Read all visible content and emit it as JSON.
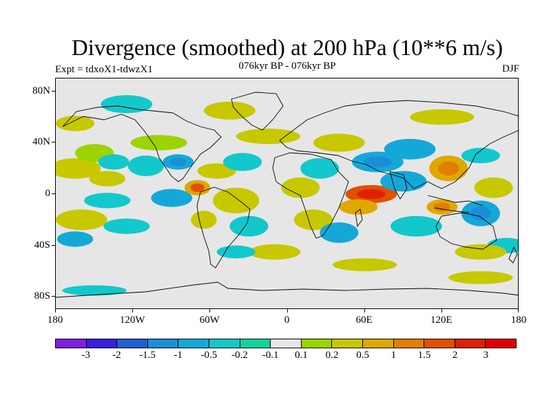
{
  "title": "Divergence (smoothed) at 200 hPa (10**6 m/s)",
  "subtitle": "076kyr BP - 076kyr BP",
  "expt": "Expt = tdxoX1-tdwzX1",
  "season": "DJF",
  "lat_labels": [
    "80N",
    "40N",
    "0",
    "40S",
    "80S"
  ],
  "lon_labels": [
    "180",
    "120W",
    "60W",
    "0",
    "60E",
    "120E",
    "180"
  ],
  "colorbar": {
    "labels": [
      "-3",
      "-2",
      "-1.5",
      "-1",
      "-0.5",
      "-0.2",
      "-0.1",
      "0.1",
      "0.2",
      "0.5",
      "1",
      "1.5",
      "2",
      "3"
    ],
    "colors": [
      "#7f1fdf",
      "#3a1fe0",
      "#1f5fd0",
      "#1a8fd8",
      "#14a8d8",
      "#12c8cc",
      "#10d49a",
      "#e6e6e6",
      "#9bd400",
      "#c8c800",
      "#dfa800",
      "#e07f00",
      "#e05000",
      "#df2000",
      "#e00000"
    ]
  },
  "chart_data": {
    "type": "filled_contour_map",
    "variable": "Divergence (smoothed) at 200 hPa",
    "units": "10**6 m/s",
    "levels": [
      -3,
      -2,
      -1.5,
      -1,
      -0.5,
      -0.2,
      -0.1,
      0.1,
      0.2,
      0.5,
      1,
      1.5,
      2,
      3
    ],
    "lon_range": [
      -180,
      180
    ],
    "lat_range": [
      -90,
      90
    ],
    "blobs": [
      {
        "lon": -165,
        "lat": 20,
        "rx": 20,
        "ry": 8,
        "value": 0.3
      },
      {
        "lon": -150,
        "lat": 32,
        "rx": 15,
        "ry": 7,
        "value": 0.2
      },
      {
        "lon": -140,
        "lat": 12,
        "rx": 14,
        "ry": 6,
        "value": 0.3
      },
      {
        "lon": -110,
        "lat": 22,
        "rx": 14,
        "ry": 8,
        "value": -0.4
      },
      {
        "lon": -135,
        "lat": 25,
        "rx": 12,
        "ry": 6,
        "value": -0.3
      },
      {
        "lon": -160,
        "lat": -20,
        "rx": 20,
        "ry": 8,
        "value": 0.4
      },
      {
        "lon": -165,
        "lat": -35,
        "rx": 14,
        "ry": 6,
        "value": -0.6
      },
      {
        "lon": -125,
        "lat": -25,
        "rx": 18,
        "ry": 6,
        "value": -0.4
      },
      {
        "lon": -140,
        "lat": -5,
        "rx": 18,
        "ry": 6,
        "value": -0.3
      },
      {
        "lon": -90,
        "lat": -3,
        "rx": 16,
        "ry": 7,
        "value": -0.5
      },
      {
        "lon": -70,
        "lat": 5,
        "rx": 10,
        "ry": 6,
        "value": 1.0
      },
      {
        "lon": -85,
        "lat": 25,
        "rx": 12,
        "ry": 6,
        "value": -0.8
      },
      {
        "lon": -100,
        "lat": 40,
        "rx": 22,
        "ry": 6,
        "value": 0.2
      },
      {
        "lon": -55,
        "lat": 18,
        "rx": 15,
        "ry": 6,
        "value": 0.4
      },
      {
        "lon": -35,
        "lat": 25,
        "rx": 15,
        "ry": 7,
        "value": -0.3
      },
      {
        "lon": -40,
        "lat": -5,
        "rx": 18,
        "ry": 10,
        "value": 0.4
      },
      {
        "lon": -65,
        "lat": -20,
        "rx": 10,
        "ry": 7,
        "value": 0.3
      },
      {
        "lon": -30,
        "lat": -25,
        "rx": 15,
        "ry": 8,
        "value": -0.3
      },
      {
        "lon": -10,
        "lat": -45,
        "rx": 20,
        "ry": 6,
        "value": 0.3
      },
      {
        "lon": -40,
        "lat": -45,
        "rx": 15,
        "ry": 5,
        "value": -0.3
      },
      {
        "lon": -15,
        "lat": 45,
        "rx": 25,
        "ry": 6,
        "value": 0.3
      },
      {
        "lon": -45,
        "lat": 65,
        "rx": 20,
        "ry": 7,
        "value": 0.3
      },
      {
        "lon": -125,
        "lat": 70,
        "rx": 20,
        "ry": 7,
        "value": -0.3
      },
      {
        "lon": 10,
        "lat": 5,
        "rx": 15,
        "ry": 8,
        "value": 0.3
      },
      {
        "lon": 25,
        "lat": 20,
        "rx": 15,
        "ry": 8,
        "value": -0.3
      },
      {
        "lon": 40,
        "lat": 40,
        "rx": 20,
        "ry": 7,
        "value": 0.3
      },
      {
        "lon": 20,
        "lat": -20,
        "rx": 15,
        "ry": 8,
        "value": 0.3
      },
      {
        "lon": 40,
        "lat": -30,
        "rx": 15,
        "ry": 8,
        "value": -0.5
      },
      {
        "lon": 65,
        "lat": 0,
        "rx": 20,
        "ry": 7,
        "value": 1.8
      },
      {
        "lon": 55,
        "lat": -10,
        "rx": 15,
        "ry": 6,
        "value": 0.6
      },
      {
        "lon": 70,
        "lat": 25,
        "rx": 20,
        "ry": 8,
        "value": -0.7
      },
      {
        "lon": 95,
        "lat": 35,
        "rx": 20,
        "ry": 8,
        "value": -0.5
      },
      {
        "lon": 90,
        "lat": 10,
        "rx": 18,
        "ry": 8,
        "value": -0.5
      },
      {
        "lon": 100,
        "lat": -25,
        "rx": 20,
        "ry": 8,
        "value": -0.4
      },
      {
        "lon": 125,
        "lat": 20,
        "rx": 15,
        "ry": 10,
        "value": 0.8
      },
      {
        "lon": 120,
        "lat": -10,
        "rx": 12,
        "ry": 6,
        "value": 0.7
      },
      {
        "lon": 150,
        "lat": -15,
        "rx": 15,
        "ry": 10,
        "value": -0.7
      },
      {
        "lon": 150,
        "lat": 30,
        "rx": 15,
        "ry": 6,
        "value": -0.4
      },
      {
        "lon": 160,
        "lat": 5,
        "rx": 15,
        "ry": 8,
        "value": 0.4
      },
      {
        "lon": 170,
        "lat": -40,
        "rx": 15,
        "ry": 6,
        "value": -0.3
      },
      {
        "lon": 150,
        "lat": -45,
        "rx": 20,
        "ry": 6,
        "value": 0.3
      },
      {
        "lon": -150,
        "lat": -75,
        "rx": 25,
        "ry": 4,
        "value": -0.3
      },
      {
        "lon": 150,
        "lat": -65,
        "rx": 25,
        "ry": 5,
        "value": 0.3
      },
      {
        "lon": 60,
        "lat": -55,
        "rx": 25,
        "ry": 5,
        "value": 0.3
      },
      {
        "lon": 120,
        "lat": 60,
        "rx": 25,
        "ry": 6,
        "value": 0.3
      },
      {
        "lon": -165,
        "lat": 55,
        "rx": 15,
        "ry": 6,
        "value": 0.3
      }
    ]
  }
}
